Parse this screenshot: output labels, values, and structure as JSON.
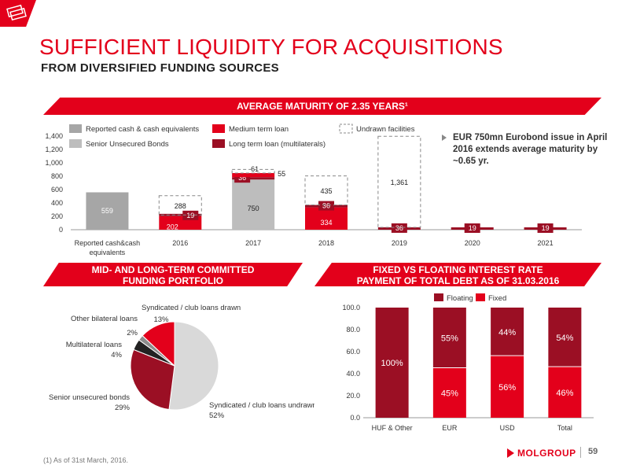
{
  "header": {
    "title": "SUFFICIENT LIQUIDITY FOR ACQUISITIONS",
    "subtitle": "FROM DIVERSIFIED FUNDING SOURCES"
  },
  "banners": {
    "top": "AVERAGE MATURITY OF 2.35 YEARS¹",
    "left_line1": "MID- AND LONG-TERM COMMITTED",
    "left_line2": "FUNDING PORTFOLIO",
    "right_line1": "FIXED VS FLOATING INTEREST RATE",
    "right_line2": "PAYMENT OF TOTAL DEBT AS OF 31.03.2016"
  },
  "bullet": "EUR 750mn Eurobond issue in April 2016 extends average maturity by ~0.65 yr.",
  "footnote": "(1) As of 31st March, 2016.",
  "logo": "MOLGROUP",
  "page_number": "59",
  "colors": {
    "red": "#e3001b",
    "dark_red": "#9b0f24",
    "grey": "#bdbdbd",
    "dark_grey": "#a6a6a6",
    "pie_light": "#d9d9d9",
    "pie_black": "#222222",
    "pie_mid": "#8c8c8c"
  },
  "chart_data": [
    {
      "type": "bar",
      "stacked": true,
      "categories": [
        "Reported cash&cash equivalents",
        "2016",
        "2017",
        "2018",
        "2019",
        "2020",
        "2021"
      ],
      "category_labels": [
        "Reported cash&cash",
        "2016",
        "2017",
        "2018",
        "2019",
        "2020",
        "2021"
      ],
      "category_label_line2": "equivalents",
      "ylim": [
        0,
        1400
      ],
      "yticks": [
        "0",
        "200",
        "400",
        "600",
        "800",
        "1,000",
        "1,200",
        "1,400"
      ],
      "legend": [
        {
          "name": "Reported cash & cash equivalents",
          "color": "#a6a6a6"
        },
        {
          "name": "Medium term loan",
          "color": "#e3001b"
        },
        {
          "name": "Undrawn facilities",
          "color": "dashed"
        },
        {
          "name": "Senior Unsecured Bonds",
          "color": "#bdbdbd"
        },
        {
          "name": "Long term loan (multilaterals)",
          "color": "#9b0f24"
        }
      ],
      "series": [
        {
          "name": "Reported cash & cash equivalents",
          "values": [
            559,
            0,
            0,
            0,
            0,
            0,
            0
          ],
          "labels": [
            "559",
            "",
            "",
            "",
            "",
            "",
            ""
          ]
        },
        {
          "name": "Senior Unsecured Bonds",
          "values": [
            0,
            0,
            750,
            0,
            0,
            0,
            0
          ],
          "labels": [
            "",
            "",
            "750",
            "",
            "",
            "",
            ""
          ]
        },
        {
          "name": "Medium term loan",
          "values": [
            0,
            202,
            0,
            334,
            0,
            0,
            0
          ],
          "labels": [
            "",
            "202",
            "",
            "334",
            "",
            "",
            ""
          ]
        },
        {
          "name": "Long term loan (multilaterals)",
          "values": [
            0,
            19,
            36,
            36,
            36,
            19,
            19
          ],
          "labels": [
            "",
            "19",
            "36",
            "36",
            "36",
            "19",
            "19"
          ]
        },
        {
          "name": "Medium term loan (top)",
          "values": [
            0,
            0,
            61,
            0,
            0,
            0,
            0
          ],
          "labels": [
            "",
            "",
            "61",
            "",
            "",
            "",
            ""
          ]
        },
        {
          "name": "Undrawn facilities",
          "values": [
            0,
            288,
            55,
            435,
            1361,
            0,
            0
          ],
          "labels": [
            "",
            "288",
            "55",
            "435",
            "1,361",
            "",
            ""
          ]
        }
      ]
    },
    {
      "type": "pie",
      "slices": [
        {
          "label": "Syndicated / club loans undrawn",
          "value": 52,
          "pct": "52%",
          "color": "#d9d9d9"
        },
        {
          "label": "Senior unsecured bonds",
          "value": 29,
          "pct": "29%",
          "color": "#9b0f24"
        },
        {
          "label": "Multilateral loans",
          "value": 4,
          "pct": "4%",
          "color": "#222222"
        },
        {
          "label": "Other bilateral loans",
          "value": 2,
          "pct": "2%",
          "color": "#8c8c8c"
        },
        {
          "label": "Syndicated / club loans drawn",
          "value": 13,
          "pct": "13%",
          "color": "#e3001b"
        }
      ]
    },
    {
      "type": "bar",
      "stacked": true,
      "categories": [
        "HUF & Other",
        "EUR",
        "USD",
        "Total"
      ],
      "ylim": [
        0,
        100
      ],
      "yticks": [
        "0.0",
        "20.0",
        "40.0",
        "60.0",
        "80.0",
        "100.0"
      ],
      "legend": [
        {
          "name": "Floating",
          "color": "#9b0f24"
        },
        {
          "name": "Fixed",
          "color": "#e3001b"
        }
      ],
      "series": [
        {
          "name": "Fixed",
          "values": [
            0,
            45,
            56,
            46
          ],
          "labels": [
            "",
            "45%",
            "56%",
            "46%"
          ]
        },
        {
          "name": "Floating",
          "values": [
            100,
            55,
            44,
            54
          ],
          "labels": [
            "100%",
            "55%",
            "44%",
            "54%"
          ]
        }
      ]
    }
  ]
}
